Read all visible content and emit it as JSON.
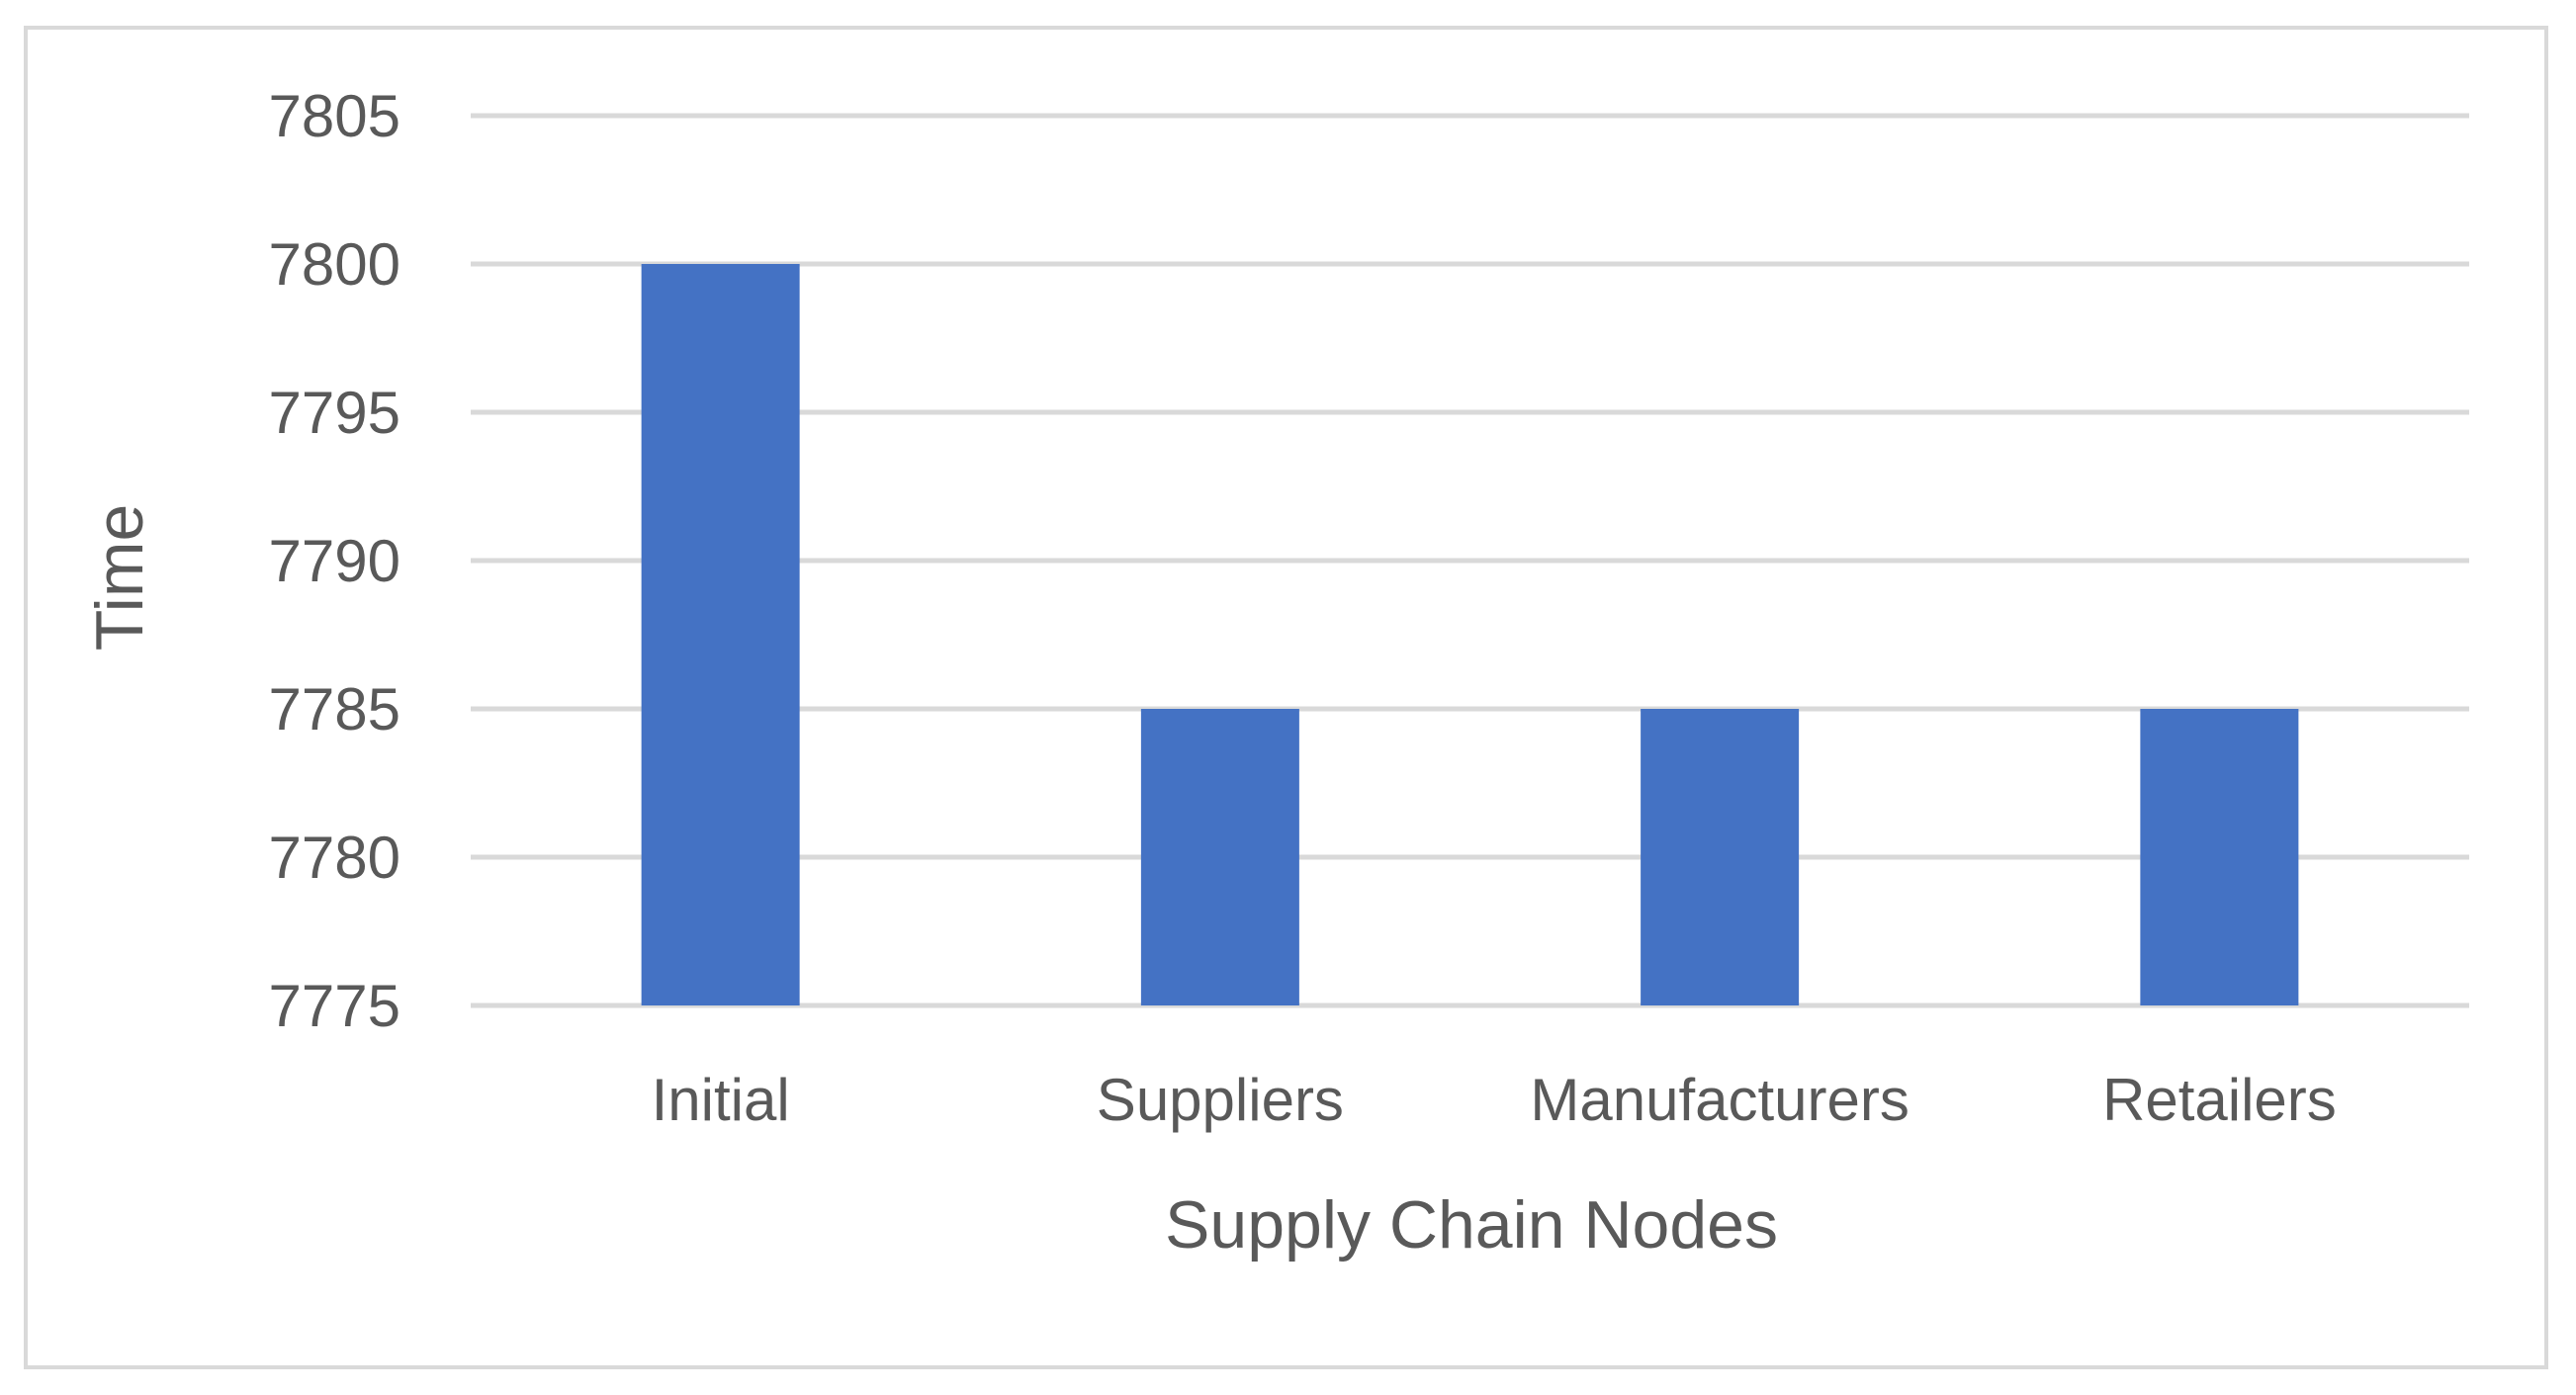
{
  "chart_data": {
    "type": "bar",
    "title": "",
    "xlabel": "Supply Chain Nodes",
    "ylabel": "Time",
    "categories": [
      "Initial",
      "Suppliers",
      "Manufacturers",
      "Retailers"
    ],
    "values": [
      7800,
      7785,
      7785,
      7785
    ],
    "ylim": [
      7775,
      7805
    ],
    "yticks": [
      7775,
      7780,
      7785,
      7790,
      7795,
      7800,
      7805
    ],
    "grid": true,
    "legend": "none",
    "colors": {
      "bar": "#4472c4",
      "grid": "#d9d9d9",
      "text": "#595959",
      "border": "#d9d9d9"
    }
  }
}
